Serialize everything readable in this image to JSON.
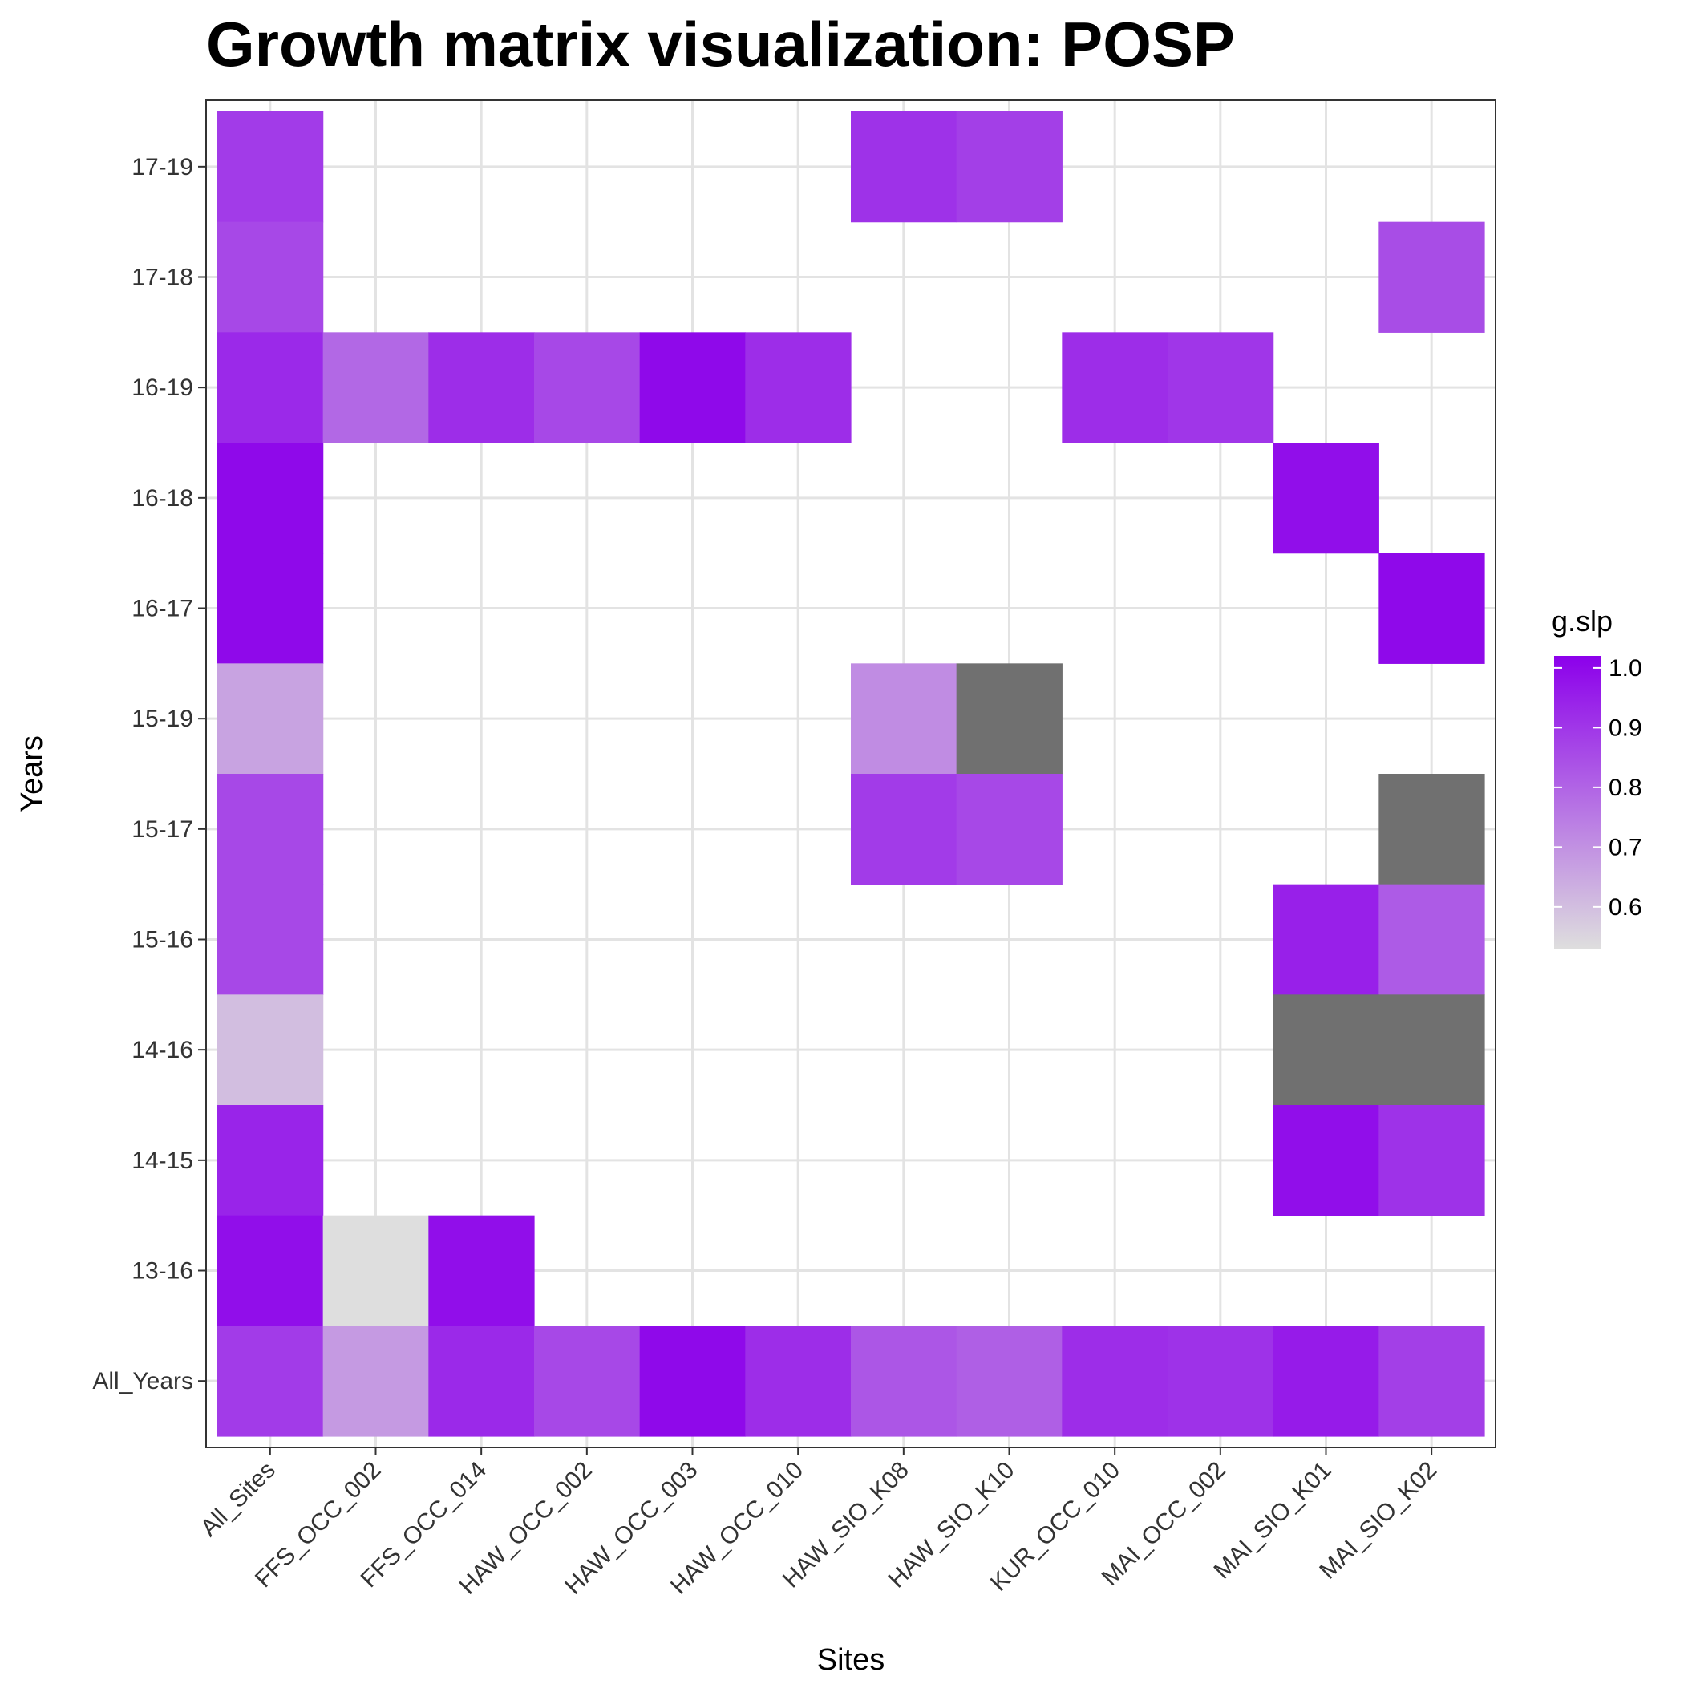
{
  "chart_data": {
    "type": "heatmap",
    "title": "Growth matrix visualization: POSP",
    "xlabel": "Sites",
    "ylabel": "Years",
    "x_categories": [
      "All_Sites",
      "FFS_OCC_002",
      "FFS_OCC_014",
      "HAW_OCC_002",
      "HAW_OCC_003",
      "HAW_OCC_010",
      "HAW_SIO_K08",
      "HAW_SIO_K10",
      "KUR_OCC_010",
      "MAI_OCC_002",
      "MAI_SIO_K01",
      "MAI_SIO_K02"
    ],
    "y_categories": [
      "All_Years",
      "13-16",
      "14-15",
      "14-16",
      "15-16",
      "15-17",
      "15-19",
      "16-17",
      "16-18",
      "16-19",
      "17-18",
      "17-19"
    ],
    "cells": [
      {
        "x": "All_Sites",
        "y": "17-19",
        "value": 0.89
      },
      {
        "x": "HAW_SIO_K08",
        "y": "17-19",
        "value": 0.91
      },
      {
        "x": "HAW_SIO_K10",
        "y": "17-19",
        "value": 0.88
      },
      {
        "x": "All_Sites",
        "y": "17-18",
        "value": 0.86
      },
      {
        "x": "MAI_SIO_K02",
        "y": "17-18",
        "value": 0.85
      },
      {
        "x": "All_Sites",
        "y": "16-19",
        "value": 0.93
      },
      {
        "x": "FFS_OCC_002",
        "y": "16-19",
        "value": 0.79
      },
      {
        "x": "FFS_OCC_014",
        "y": "16-19",
        "value": 0.92
      },
      {
        "x": "HAW_OCC_002",
        "y": "16-19",
        "value": 0.86
      },
      {
        "x": "HAW_OCC_003",
        "y": "16-19",
        "value": 1.0
      },
      {
        "x": "HAW_OCC_010",
        "y": "16-19",
        "value": 0.92
      },
      {
        "x": "KUR_OCC_010",
        "y": "16-19",
        "value": 0.92
      },
      {
        "x": "MAI_OCC_002",
        "y": "16-19",
        "value": 0.9
      },
      {
        "x": "All_Sites",
        "y": "16-18",
        "value": 1.0
      },
      {
        "x": "MAI_SIO_K01",
        "y": "16-18",
        "value": 0.99
      },
      {
        "x": "All_Sites",
        "y": "16-17",
        "value": 1.0
      },
      {
        "x": "MAI_SIO_K02",
        "y": "16-17",
        "value": 1.0
      },
      {
        "x": "All_Sites",
        "y": "15-19",
        "value": 0.66
      },
      {
        "x": "HAW_SIO_K08",
        "y": "15-19",
        "value": 0.71
      },
      {
        "x": "HAW_SIO_K10",
        "y": "15-19",
        "value": null
      },
      {
        "x": "All_Sites",
        "y": "15-17",
        "value": 0.86
      },
      {
        "x": "HAW_SIO_K08",
        "y": "15-17",
        "value": 0.89
      },
      {
        "x": "HAW_SIO_K10",
        "y": "15-17",
        "value": 0.86
      },
      {
        "x": "MAI_SIO_K02",
        "y": "15-17",
        "value": null
      },
      {
        "x": "All_Sites",
        "y": "15-16",
        "value": 0.86
      },
      {
        "x": "MAI_SIO_K01",
        "y": "15-16",
        "value": 0.95
      },
      {
        "x": "MAI_SIO_K02",
        "y": "15-16",
        "value": 0.82
      },
      {
        "x": "All_Sites",
        "y": "14-16",
        "value": 0.6
      },
      {
        "x": "MAI_SIO_K01",
        "y": "14-16",
        "value": null
      },
      {
        "x": "MAI_SIO_K02",
        "y": "14-16",
        "value": null
      },
      {
        "x": "All_Sites",
        "y": "14-15",
        "value": 0.94
      },
      {
        "x": "MAI_SIO_K01",
        "y": "14-15",
        "value": 0.99
      },
      {
        "x": "MAI_SIO_K02",
        "y": "14-15",
        "value": 0.91
      },
      {
        "x": "All_Sites",
        "y": "13-16",
        "value": 0.99
      },
      {
        "x": "FFS_OCC_002",
        "y": "13-16",
        "value": 0.53
      },
      {
        "x": "FFS_OCC_014",
        "y": "13-16",
        "value": 0.99
      },
      {
        "x": "All_Sites",
        "y": "All_Years",
        "value": 0.89
      },
      {
        "x": "FFS_OCC_002",
        "y": "All_Years",
        "value": 0.68
      },
      {
        "x": "FFS_OCC_014",
        "y": "All_Years",
        "value": 0.93
      },
      {
        "x": "HAW_OCC_002",
        "y": "All_Years",
        "value": 0.86
      },
      {
        "x": "HAW_OCC_003",
        "y": "All_Years",
        "value": 1.0
      },
      {
        "x": "HAW_OCC_010",
        "y": "All_Years",
        "value": 0.92
      },
      {
        "x": "HAW_SIO_K08",
        "y": "All_Years",
        "value": 0.83
      },
      {
        "x": "HAW_SIO_K10",
        "y": "All_Years",
        "value": 0.81
      },
      {
        "x": "KUR_OCC_010",
        "y": "All_Years",
        "value": 0.92
      },
      {
        "x": "MAI_OCC_002",
        "y": "All_Years",
        "value": 0.91
      },
      {
        "x": "MAI_SIO_K01",
        "y": "All_Years",
        "value": 0.96
      },
      {
        "x": "MAI_SIO_K02",
        "y": "All_Years",
        "value": 0.88
      }
    ],
    "legend": {
      "title": "g.slp",
      "placement": "right",
      "range": [
        0.53,
        1.02
      ],
      "ticks": [
        0.6,
        0.7,
        0.8,
        0.9,
        1.0
      ],
      "tick_labels": [
        "0.6",
        "0.7",
        "0.8",
        "0.9",
        "1.0"
      ],
      "low_color": "#dedede",
      "high_color": "#8c00eb",
      "na_color": "#707070"
    },
    "grid": true
  }
}
